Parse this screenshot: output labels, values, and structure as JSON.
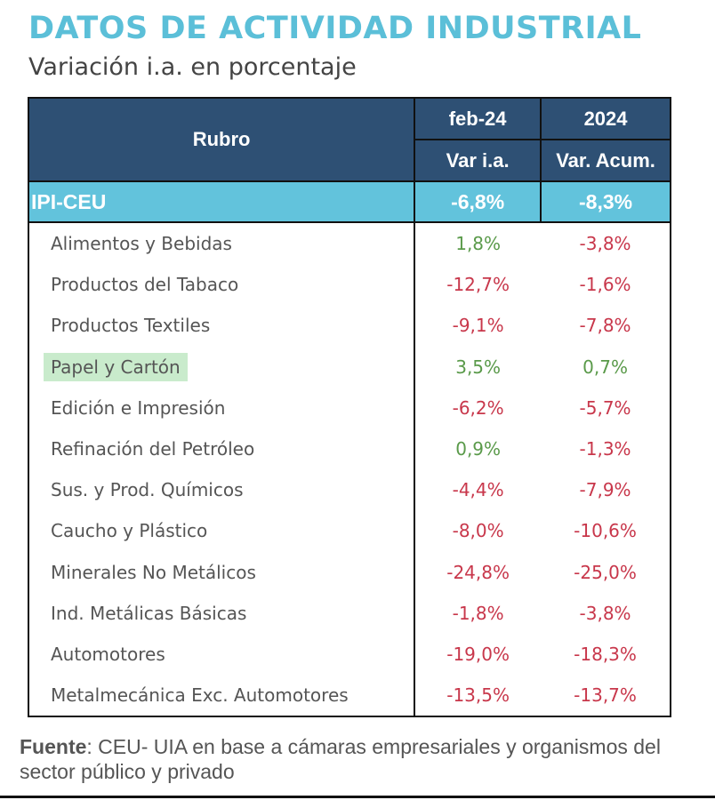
{
  "title": "DATOS DE ACTIVIDAD INDUSTRIAL",
  "subtitle": "Variación i.a. en porcentaje",
  "colors": {
    "header": "#2e5074",
    "highlight_row": "#62c3dc",
    "positive": "#5a9a4a",
    "negative": "#c8374b",
    "title": "#5bbfd8",
    "highlight_label": "#c9ebcc"
  },
  "chart_data": {
    "type": "table",
    "headers": {
      "rubro": "Rubro",
      "col1_top": "feb-24",
      "col1_sub": "Var i.a.",
      "col2_top": "2024",
      "col2_sub": "Var. Acum."
    },
    "total": {
      "label": "IPI-CEU",
      "var_ia": "-6,8%",
      "var_acum": "-8,3%"
    },
    "rows": [
      {
        "label": "Alimentos y Bebidas",
        "var_ia": "1,8%",
        "var_acum": "-3,8%"
      },
      {
        "label": "Productos del Tabaco",
        "var_ia": "-12,7%",
        "var_acum": "-1,6%"
      },
      {
        "label": "Productos Textiles",
        "var_ia": "-9,1%",
        "var_acum": "-7,8%"
      },
      {
        "label": "Papel y Cartón",
        "var_ia": "3,5%",
        "var_acum": "0,7%",
        "highlighted": true
      },
      {
        "label": "Edición e Impresión",
        "var_ia": "-6,2%",
        "var_acum": "-5,7%"
      },
      {
        "label": "Refinación del Petróleo",
        "var_ia": "0,9%",
        "var_acum": "-1,3%"
      },
      {
        "label": "Sus. y Prod. Químicos",
        "var_ia": "-4,4%",
        "var_acum": "-7,9%"
      },
      {
        "label": "Caucho y Plástico",
        "var_ia": "-8,0%",
        "var_acum": "-10,6%"
      },
      {
        "label": "Minerales No Metálicos",
        "var_ia": "-24,8%",
        "var_acum": "-25,0%"
      },
      {
        "label": "Ind. Metálicas Básicas",
        "var_ia": "-1,8%",
        "var_acum": "-3,8%"
      },
      {
        "label": "Automotores",
        "var_ia": "-19,0%",
        "var_acum": "-18,3%"
      },
      {
        "label": "Metalmecánica Exc. Automotores",
        "var_ia": "-13,5%",
        "var_acum": "-13,7%"
      }
    ]
  },
  "source": {
    "label": "Fuente",
    "text": ": CEU- UIA en base a cámaras empresariales y organismos del sector público y privado"
  }
}
